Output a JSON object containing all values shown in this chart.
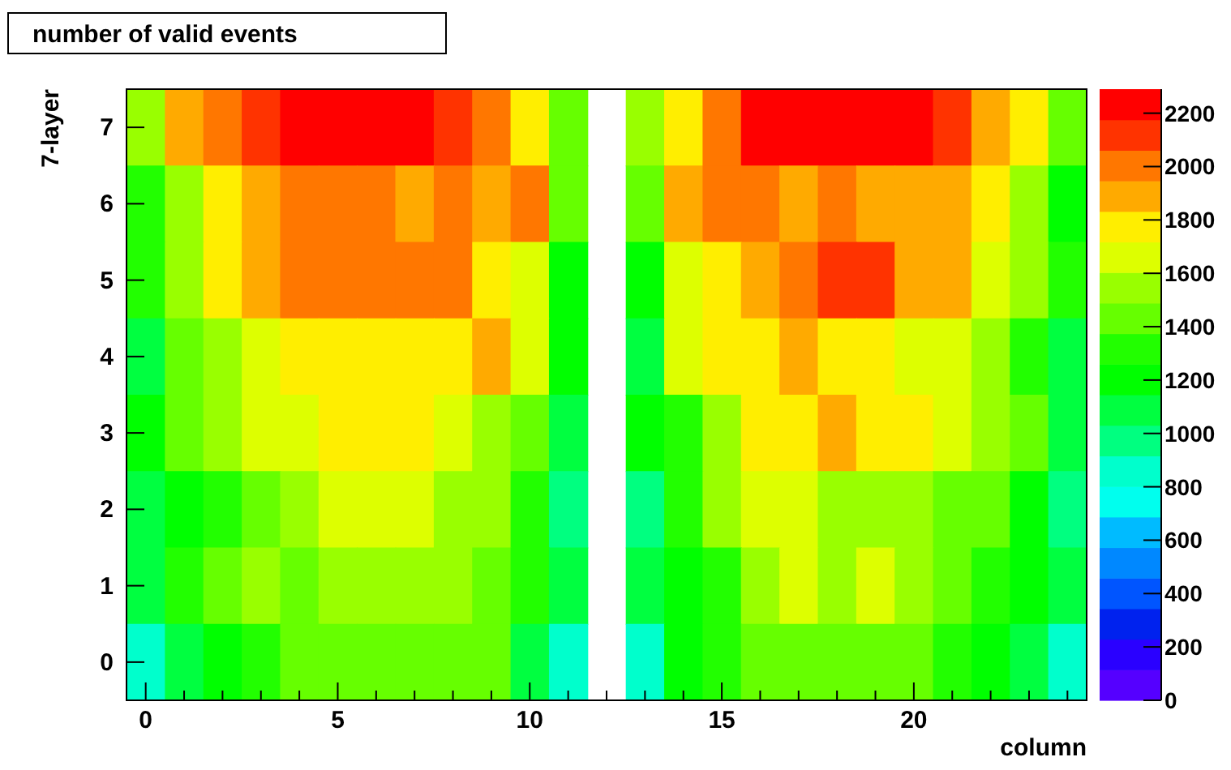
{
  "chart_data": {
    "type": "heatmap",
    "title": "number of valid events",
    "xlabel": "column",
    "ylabel": "7-layer",
    "categories": [
      "0",
      null,
      null,
      null,
      null,
      "5",
      null,
      null,
      null,
      null,
      "10",
      null,
      null,
      null,
      null,
      "15",
      null,
      null,
      null,
      null,
      "20",
      null,
      null,
      null,
      null
    ],
    "y_categories": [
      "7",
      "6",
      "5",
      "4",
      "3",
      "2",
      "1",
      "0"
    ],
    "cells": [
      [
        1550,
        1890,
        2000,
        2120,
        2230,
        2230,
        2230,
        2230,
        2120,
        2000,
        1770,
        1430,
        null,
        1550,
        1770,
        2000,
        2230,
        2230,
        2230,
        2230,
        2230,
        2120,
        1890,
        1770,
        1430
      ],
      [
        1320,
        1550,
        1770,
        1890,
        2000,
        2000,
        2000,
        1890,
        2000,
        1890,
        2000,
        1430,
        null,
        1430,
        1890,
        2000,
        2000,
        1890,
        2000,
        1890,
        1890,
        1890,
        1770,
        1550,
        1200
      ],
      [
        1320,
        1550,
        1770,
        1890,
        2000,
        2000,
        2000,
        2000,
        2000,
        1770,
        1660,
        1200,
        null,
        1200,
        1660,
        1770,
        1890,
        2000,
        2120,
        2120,
        1890,
        1890,
        1660,
        1550,
        1320
      ],
      [
        1090,
        1430,
        1550,
        1660,
        1770,
        1770,
        1770,
        1770,
        1770,
        1890,
        1660,
        1200,
        null,
        1090,
        1660,
        1770,
        1770,
        1890,
        1770,
        1770,
        1660,
        1660,
        1550,
        1320,
        1090
      ],
      [
        1200,
        1430,
        1550,
        1660,
        1660,
        1770,
        1770,
        1770,
        1660,
        1550,
        1430,
        1090,
        null,
        1200,
        1320,
        1550,
        1770,
        1770,
        1890,
        1770,
        1770,
        1660,
        1550,
        1430,
        1090
      ],
      [
        1090,
        1200,
        1320,
        1430,
        1550,
        1660,
        1660,
        1660,
        1550,
        1550,
        1320,
        970,
        null,
        970,
        1320,
        1550,
        1660,
        1660,
        1550,
        1550,
        1550,
        1430,
        1430,
        1200,
        970
      ],
      [
        1090,
        1320,
        1430,
        1550,
        1430,
        1550,
        1550,
        1550,
        1550,
        1430,
        1320,
        1090,
        null,
        1090,
        1200,
        1320,
        1550,
        1660,
        1550,
        1660,
        1550,
        1430,
        1320,
        1200,
        1090
      ],
      [
        860,
        1090,
        1200,
        1320,
        1430,
        1430,
        1430,
        1430,
        1430,
        1430,
        1090,
        860,
        null,
        860,
        1200,
        1320,
        1430,
        1430,
        1430,
        1430,
        1430,
        1320,
        1200,
        1090,
        860
      ]
    ],
    "clim": [
      0,
      2290
    ],
    "cticks": [
      0,
      200,
      400,
      600,
      800,
      1000,
      1200,
      1400,
      1600,
      1800,
      2000,
      2200
    ]
  }
}
